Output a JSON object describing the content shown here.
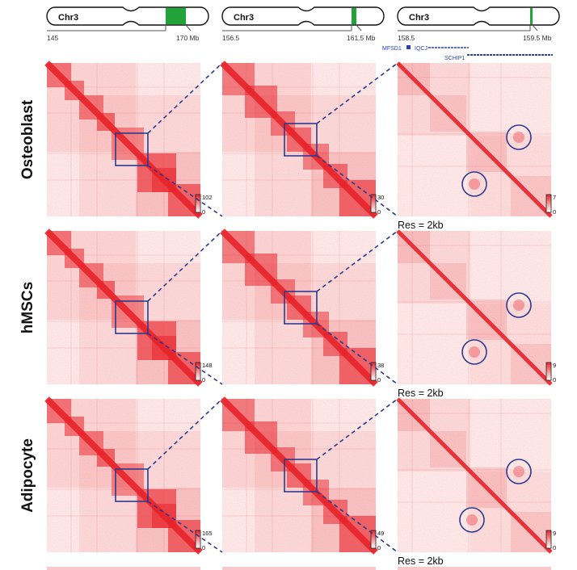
{
  "figure": {
    "chromosome_panels": [
      {
        "label": "Chr3",
        "start_label": "145",
        "end_label": "170 Mb",
        "highlight": "wide"
      },
      {
        "label": "Chr3",
        "start_label": "156.5",
        "end_label": "161.5 Mb",
        "highlight": "narrow"
      },
      {
        "label": "Chr3",
        "start_label": "158.5",
        "end_label": "159.5 Mb",
        "highlight": "thin",
        "genes": [
          "MFSD1",
          "IQCJ",
          "SCHIP1"
        ]
      }
    ],
    "rows": [
      {
        "cell_type": "Osteoblast",
        "scale_max": [
          "102",
          "30",
          "7"
        ],
        "scale_min": "0",
        "resolution": "Res = 2kb"
      },
      {
        "cell_type": "hMSCs",
        "scale_max": [
          "148",
          "38",
          "9"
        ],
        "scale_min": "0",
        "resolution": "Res = 2kb"
      },
      {
        "cell_type": "Adipocyte",
        "scale_max": [
          "165",
          "49",
          "9"
        ],
        "scale_min": "0",
        "resolution": "Res = 2kb"
      }
    ],
    "colors": {
      "heatmap": "#e8232a",
      "highlight_box": "#2b3a8f",
      "zoom_line": "#2b3a8f",
      "chromosome_band": "#22a33a",
      "gene_track": "#2a3fb5"
    }
  }
}
